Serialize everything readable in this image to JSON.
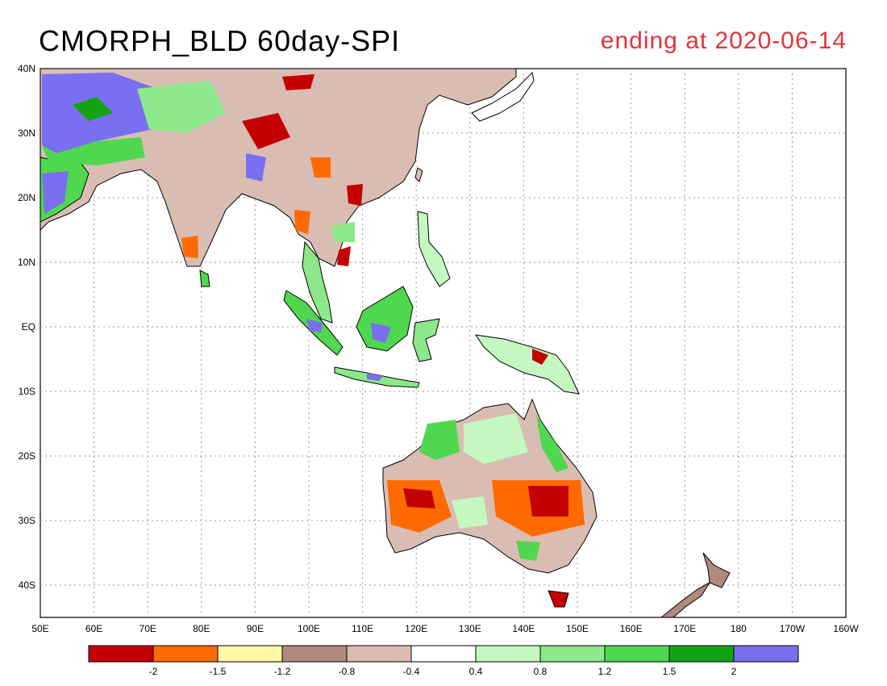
{
  "header": {
    "title": "CMORPH_BLD 60day-SPI",
    "subtitle": "ending at 2020-06-14"
  },
  "axes": {
    "x_ticks": [
      "50E",
      "60E",
      "70E",
      "80E",
      "90E",
      "100E",
      "110E",
      "120E",
      "130E",
      "140E",
      "150E",
      "160E",
      "170E",
      "180",
      "170W",
      "160W"
    ],
    "y_ticks": [
      "40N",
      "30N",
      "20N",
      "10N",
      "EQ",
      "10S",
      "20S",
      "30S",
      "40S"
    ]
  },
  "legend": {
    "ticks": [
      "-2",
      "-1.5",
      "-1.2",
      "-0.8",
      "-0.4",
      "0.4",
      "0.8",
      "1.2",
      "1.5",
      "2"
    ],
    "colors": [
      "#c40000",
      "#ff6a00",
      "#fff8a8",
      "#b08a7c",
      "#dcbcb0",
      "#ffffff",
      "#c4f8c0",
      "#8ce88a",
      "#4fd84f",
      "#12a412",
      "#7a6ff0"
    ]
  }
}
